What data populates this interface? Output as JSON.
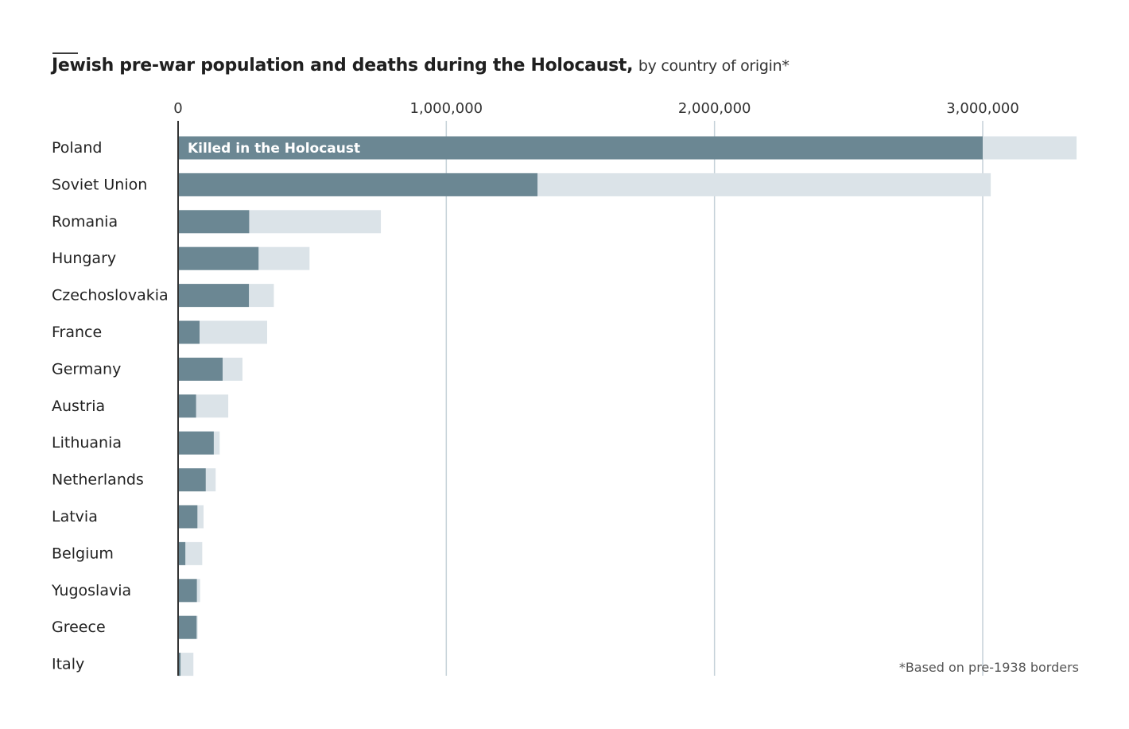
{
  "title": {
    "main": "Jewish pre-war population and deaths during the Holocaust,",
    "sub": "by country of origin*"
  },
  "footnote": "*Based on pre-1938 borders",
  "colors": {
    "killed": "#6b8793",
    "population": "#dbe3e8",
    "gridline": "#c5d1d8",
    "axis": "#333333"
  },
  "chart_data": {
    "type": "bar",
    "orientation": "horizontal",
    "stacking": "overlay",
    "xlim": [
      0,
      3350000
    ],
    "x_ticks": [
      0,
      1000000,
      2000000,
      3000000
    ],
    "x_tick_labels": [
      "0",
      "1,000,000",
      "2,000,000",
      "3,000,000"
    ],
    "grid": true,
    "categories": [
      "Poland",
      "Soviet Union",
      "Romania",
      "Hungary",
      "Czechoslovakia",
      "France",
      "Germany",
      "Austria",
      "Lithuania",
      "Netherlands",
      "Latvia",
      "Belgium",
      "Yugoslavia",
      "Greece",
      "Italy"
    ],
    "series": [
      {
        "name": "Population",
        "values": [
          3350000,
          3030000,
          756000,
          490000,
          357000,
          332000,
          240000,
          187000,
          155000,
          140000,
          95000,
          90000,
          82000,
          73000,
          57000
        ]
      },
      {
        "name": "Killed in the Holocaust",
        "values": [
          3000000,
          1340000,
          265000,
          300000,
          264000,
          80000,
          166000,
          67000,
          133000,
          103000,
          72000,
          27000,
          70000,
          69000,
          9000
        ]
      }
    ],
    "annotation": "Killed in the Holocaust"
  }
}
